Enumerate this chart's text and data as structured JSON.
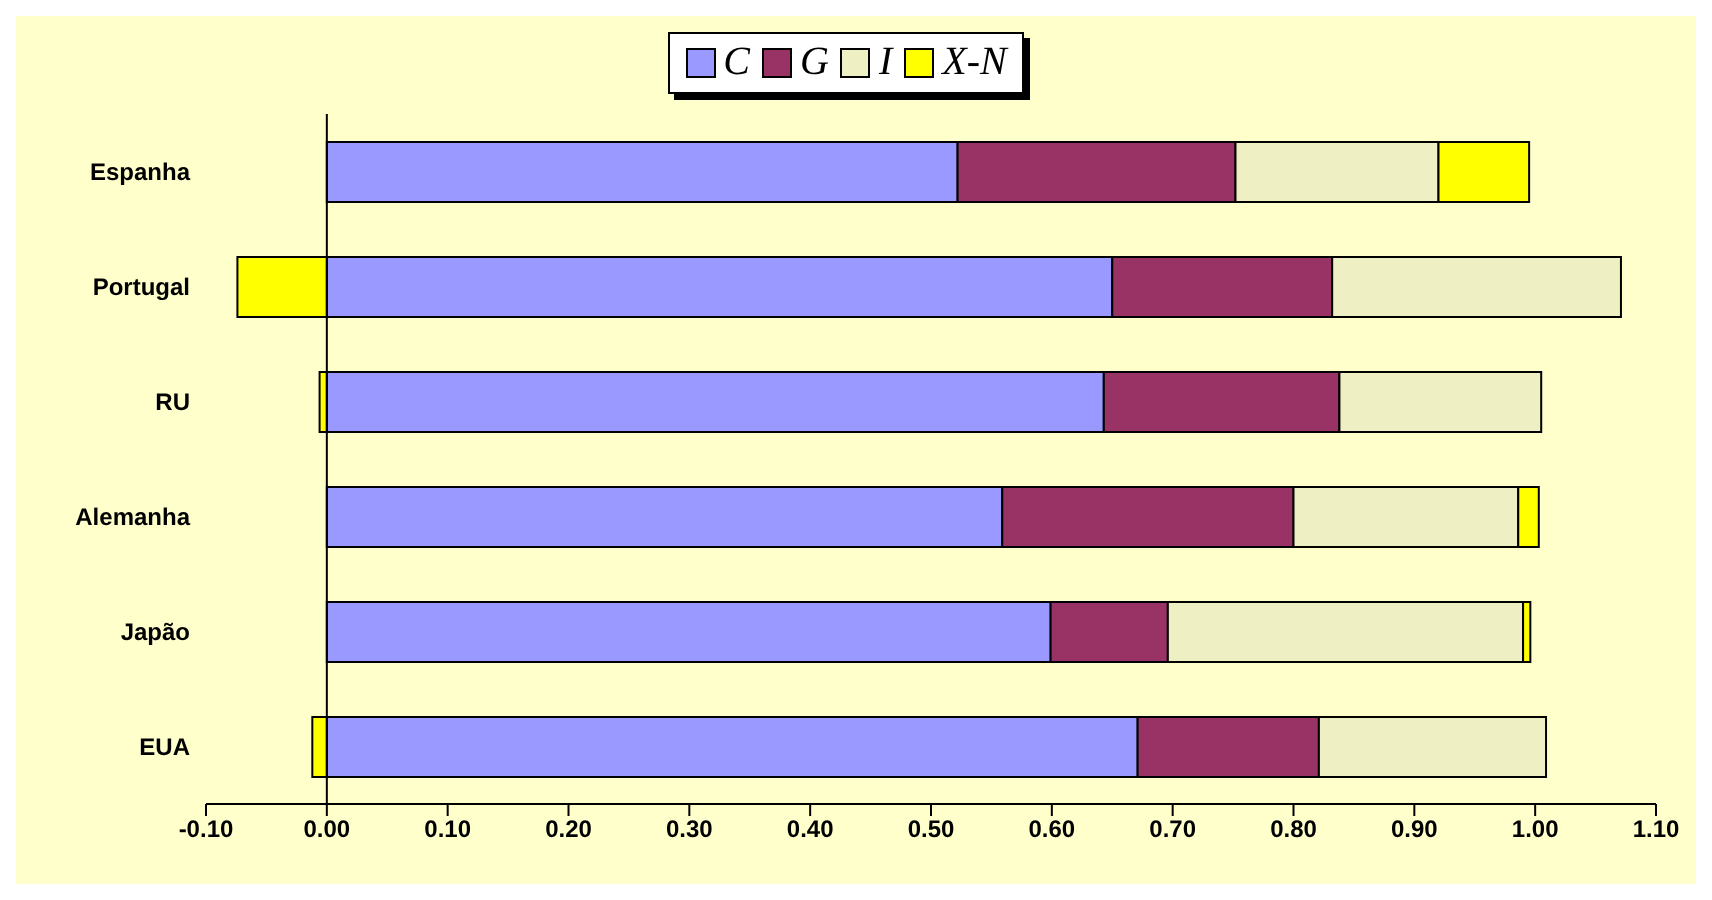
{
  "chart_data": {
    "type": "bar",
    "orientation": "horizontal",
    "stacked": true,
    "categories": [
      "Espanha",
      "Portugal",
      "RU",
      "Alemanha",
      "Japão",
      "EUA"
    ],
    "series": [
      {
        "name": "C",
        "color": "#9999ff",
        "values": [
          0.522,
          0.65,
          0.643,
          0.559,
          0.599,
          0.671
        ]
      },
      {
        "name": "G",
        "color": "#993366",
        "values": [
          0.23,
          0.182,
          0.195,
          0.241,
          0.097,
          0.15
        ]
      },
      {
        "name": "I",
        "color": "#efefc4",
        "values": [
          0.168,
          0.239,
          0.167,
          0.186,
          0.294,
          0.188
        ]
      },
      {
        "name": "X-N",
        "color": "#ffff00",
        "values": [
          0.075,
          -0.074,
          -0.006,
          0.017,
          0.006,
          -0.012
        ]
      }
    ],
    "xlim": [
      -0.1,
      1.1
    ],
    "xticks": [
      {
        "value": -0.1,
        "label": "-0.10"
      },
      {
        "value": 0,
        "label": "0.00"
      },
      {
        "value": 0.1,
        "label": "0.10"
      },
      {
        "value": 0.2,
        "label": "0.20"
      },
      {
        "value": 0.3,
        "label": "0.30"
      },
      {
        "value": 0.4,
        "label": "0.40"
      },
      {
        "value": 0.5,
        "label": "0.50"
      },
      {
        "value": 0.6,
        "label": "0.60"
      },
      {
        "value": 0.7,
        "label": "0.70"
      },
      {
        "value": 0.8,
        "label": "0.80"
      },
      {
        "value": 0.9,
        "label": "0.90"
      },
      {
        "value": 1.0,
        "label": "1.00"
      },
      {
        "value": 1.1,
        "label": "1.10"
      }
    ],
    "legend": "top"
  }
}
